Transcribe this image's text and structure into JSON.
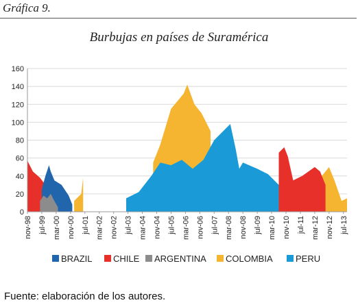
{
  "figure_label": "Gráfica 9.",
  "source_note": "Fuente: elaboración de los autores.",
  "colors": {
    "BRAZIL": "#2166ac",
    "CHILE": "#e8302a",
    "ARGENTINA": "#8c8c8c",
    "COLOMBIA": "#f5b530",
    "PERU": "#1a9bd7",
    "grid": "#d9d9d9"
  },
  "chart_data": {
    "type": "area",
    "title": "Burbujas en países de Suramérica",
    "xlabel": "",
    "ylabel": "",
    "ylim": [
      0,
      160
    ],
    "yticks": [
      0,
      20,
      40,
      60,
      80,
      100,
      120,
      140,
      160
    ],
    "x_start": "nov-98",
    "x_end": "sep-13",
    "xtick_labels": [
      "nov-98",
      "jul-99",
      "mar-00",
      "nov-00",
      "jul-01",
      "mar-02",
      "nov-02",
      "jul-03",
      "mar-04",
      "nov-04",
      "jul-05",
      "mar-06",
      "nov-06",
      "jul-07",
      "mar-08",
      "nov-08",
      "jul-09",
      "mar-10",
      "nov-10",
      "jul-11",
      "mar-12",
      "nov-12",
      "jul-13"
    ],
    "grid": true,
    "legend_position": "bottom",
    "series": [
      {
        "name": "BRAZIL",
        "color": "#2166ac",
        "points": [
          [
            "jul-99",
            25
          ],
          [
            "sep-99",
            40
          ],
          [
            "nov-99",
            52
          ],
          [
            "dec-99",
            45
          ],
          [
            "feb-00",
            35
          ],
          [
            "jun-00",
            30
          ],
          [
            "oct-00",
            18
          ],
          [
            "dec-00",
            8
          ]
        ]
      },
      {
        "name": "CHILE",
        "color": "#e8302a",
        "points": [
          [
            "nov-98",
            57
          ],
          [
            "feb-99",
            45
          ],
          [
            "jun-99",
            38
          ],
          [
            "sep-99",
            30
          ],
          [
            "jul-10",
            66
          ],
          [
            "oct-10",
            72
          ],
          [
            "dec-10",
            62
          ],
          [
            "mar-11",
            35
          ],
          [
            "aug-11",
            40
          ],
          [
            "mar-12",
            50
          ],
          [
            "jun-12",
            45
          ],
          [
            "sep-12",
            30
          ]
        ]
      },
      {
        "name": "ARGENTINA",
        "color": "#8c8c8c",
        "points": [
          [
            "jun-99",
            12
          ],
          [
            "aug-99",
            18
          ],
          [
            "oct-99",
            15
          ],
          [
            "dec-99",
            20
          ],
          [
            "feb-00",
            12
          ],
          [
            "apr-00",
            5
          ]
        ]
      },
      {
        "name": "COLOMBIA",
        "color": "#f5b530",
        "points": [
          [
            "jan-01",
            12
          ],
          [
            "may-01",
            20
          ],
          [
            "jun-01",
            38
          ],
          [
            "sep-04",
            55
          ],
          [
            "jan-05",
            75
          ],
          [
            "jul-05",
            115
          ],
          [
            "feb-06",
            132
          ],
          [
            "apr-06",
            142
          ],
          [
            "aug-06",
            120
          ],
          [
            "dec-06",
            110
          ],
          [
            "may-07",
            90
          ],
          [
            "jan-11",
            15
          ],
          [
            "jun-11",
            18
          ],
          [
            "jan-12",
            30
          ],
          [
            "jul-12",
            40
          ],
          [
            "nov-12",
            50
          ],
          [
            "feb-13",
            35
          ],
          [
            "jun-13",
            12
          ],
          [
            "sep-13",
            15
          ]
        ]
      },
      {
        "name": "PERU",
        "color": "#1a9bd7",
        "points": [
          [
            "jun-03",
            15
          ],
          [
            "jan-04",
            22
          ],
          [
            "aug-04",
            40
          ],
          [
            "jan-05",
            55
          ],
          [
            "jul-05",
            52
          ],
          [
            "jan-06",
            58
          ],
          [
            "jul-06",
            48
          ],
          [
            "jan-07",
            58
          ],
          [
            "jul-07",
            80
          ],
          [
            "jan-08",
            92
          ],
          [
            "apr-08",
            98
          ],
          [
            "jul-08",
            70
          ],
          [
            "sep-08",
            48
          ],
          [
            "nov-08",
            55
          ],
          [
            "jul-09",
            48
          ],
          [
            "jan-10",
            42
          ],
          [
            "aug-10",
            28
          ],
          [
            "nov-10",
            22
          ],
          [
            "dec-12",
            4
          ]
        ]
      }
    ]
  }
}
